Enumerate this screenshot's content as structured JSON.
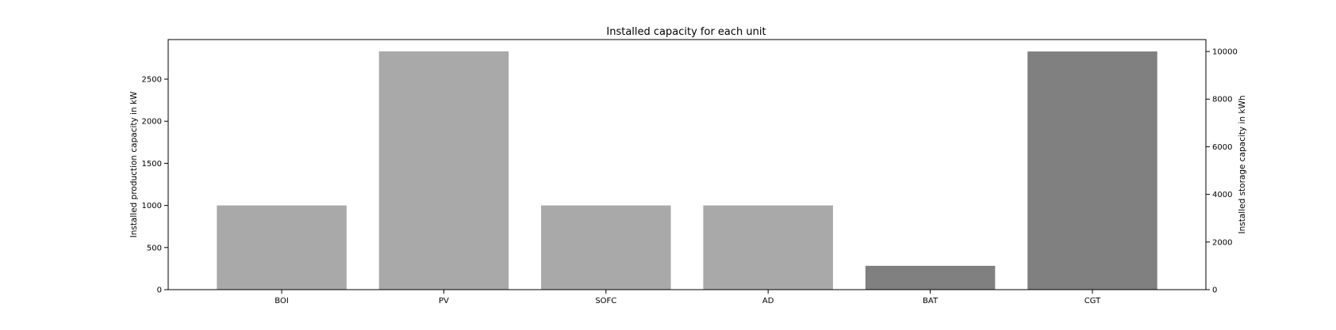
{
  "chart_data": {
    "type": "bar",
    "title": "Installed capacity for each unit",
    "categories": [
      "BOI",
      "PV",
      "SOFC",
      "AD",
      "BAT",
      "CGT"
    ],
    "series": [
      {
        "axis": "left",
        "color": "#a9a9a9",
        "values": [
          1000,
          2830,
          1000,
          1000,
          null,
          null
        ]
      },
      {
        "axis": "right",
        "color": "#808080",
        "values": [
          null,
          null,
          null,
          null,
          1000,
          10000
        ]
      }
    ],
    "ylabel": "Installed production capacity in kW",
    "ylim": [
      0,
      2970
    ],
    "yticks": [
      0,
      500,
      1000,
      1500,
      2000,
      2500
    ],
    "y2label": "Installed storage capacity in kWh",
    "y2lim": [
      0,
      10500
    ],
    "y2ticks": [
      0,
      2000,
      4000,
      6000,
      8000,
      10000
    ],
    "grid": false
  }
}
